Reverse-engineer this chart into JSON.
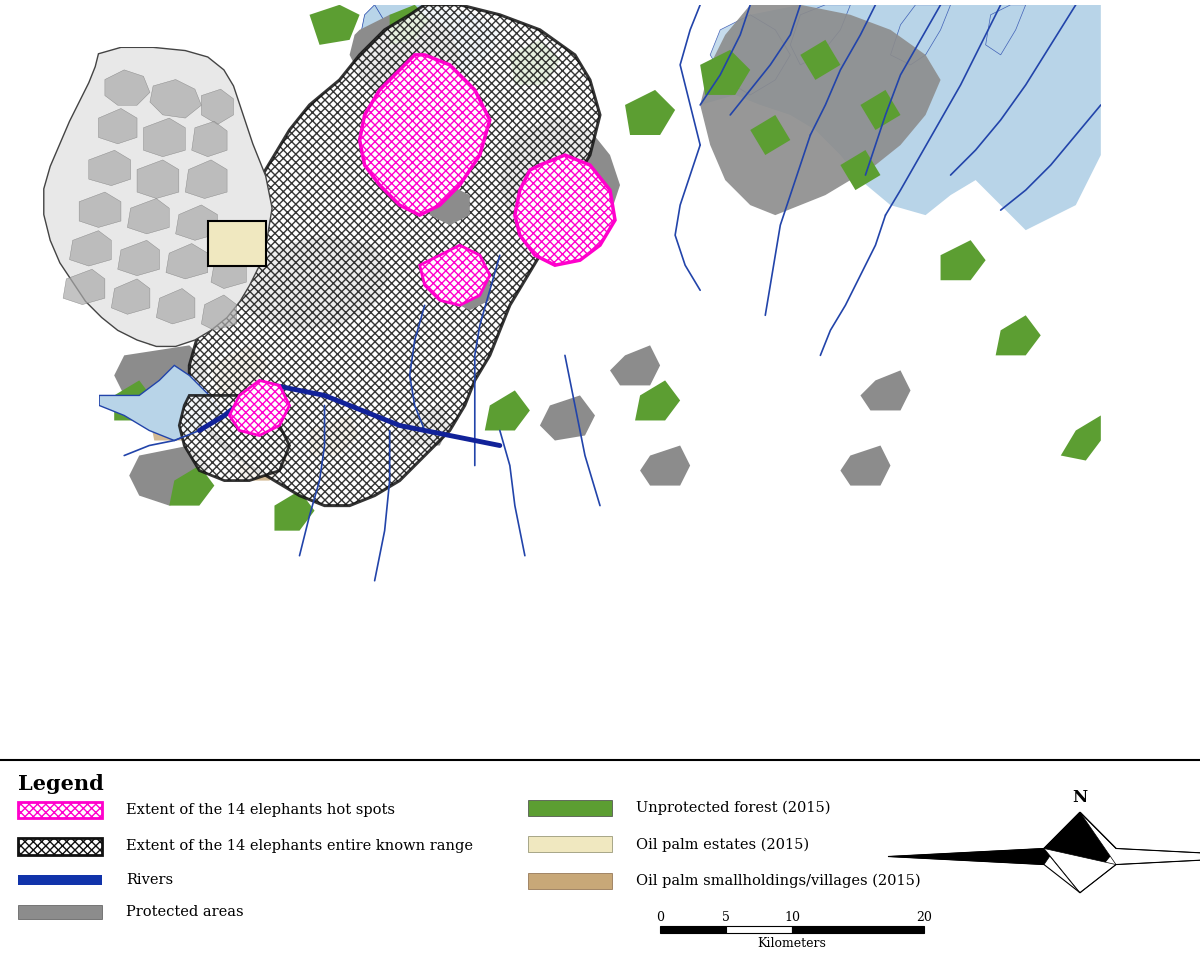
{
  "background_color": "#eae8d8",
  "ocean_color": "#b8d4e8",
  "inset_ocean_color": "#b8d4e8",
  "protected_color": "#8c8c8c",
  "forest_color": "#5c9e32",
  "oil_palm_estate_color": "#f0e8c0",
  "oil_palm_smallhold_color": "#c8a878",
  "river_color": "#2244aa",
  "river_thick_color": "#1133aa",
  "hotspot_edge_color": "#ff00cc",
  "range_edge_color": "#111111",
  "legend_title": "Legend",
  "legend_items_left": [
    "Extent of the 14 elephants hot spots",
    "Extent of the 14 elephants entire known range",
    "Rivers",
    "Protected areas"
  ],
  "legend_items_right": [
    "Unprotected forest (2015)",
    "Oil palm estates (2015)",
    "Oil palm smallholdings/villages (2015)"
  ],
  "scale_bar_label": "Kilometers",
  "scale_values": [
    "0",
    "5",
    "10",
    "20"
  ],
  "north_arrow_label": "N",
  "map_border_color": "#333333",
  "inset_border_color": "#333333"
}
